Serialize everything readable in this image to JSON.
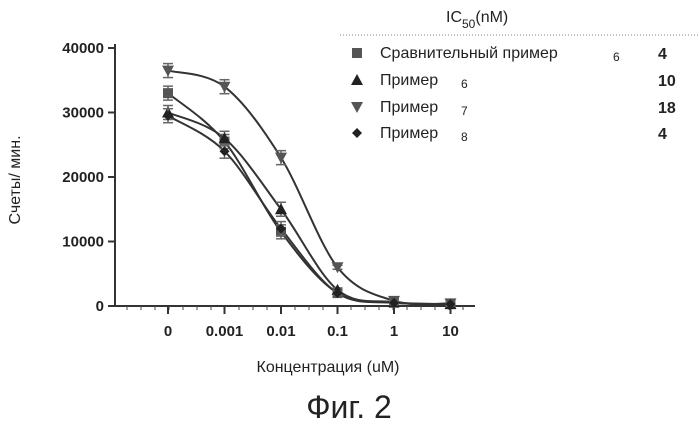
{
  "figure_caption": "Фиг. 2",
  "chart_data": {
    "type": "line",
    "xlabel": "Концентрация (uM)",
    "ylabel": "Счеты/ мин.",
    "x_ticks": [
      "0",
      "0.001",
      "0.01",
      "0.1",
      "1",
      "10"
    ],
    "y_ticks": [
      0,
      10000,
      20000,
      30000,
      40000
    ],
    "ylim": [
      0,
      40000
    ],
    "legend_header": {
      "prefix": "IC",
      "subscript": "50",
      "suffix": "(nM)"
    },
    "series": [
      {
        "name": "Сравнительный пример",
        "name_number": "6",
        "ic50": "4",
        "marker": "square",
        "x": [
          "0",
          "0.001",
          "0.01",
          "0.1",
          "1",
          "10"
        ],
        "values": [
          33000,
          25500,
          11500,
          2000,
          500,
          300
        ]
      },
      {
        "name": "Пример",
        "name_number": "6",
        "ic50": "10",
        "marker": "triangle-up",
        "x": [
          "0",
          "0.001",
          "0.01",
          "0.1",
          "1",
          "10"
        ],
        "values": [
          30000,
          26000,
          15000,
          2500,
          600,
          300
        ]
      },
      {
        "name": "Пример",
        "name_number": "7",
        "ic50": "18",
        "marker": "triangle-down",
        "x": [
          "0",
          "0.001",
          "0.01",
          "0.1",
          "1",
          "10"
        ],
        "values": [
          36500,
          34000,
          23000,
          6000,
          800,
          400
        ]
      },
      {
        "name": "Пример",
        "name_number": "8",
        "ic50": "4",
        "marker": "diamond",
        "x": [
          "0",
          "0.001",
          "0.01",
          "0.1",
          "1",
          "10"
        ],
        "values": [
          29500,
          24000,
          12000,
          2000,
          500,
          300
        ]
      }
    ]
  }
}
